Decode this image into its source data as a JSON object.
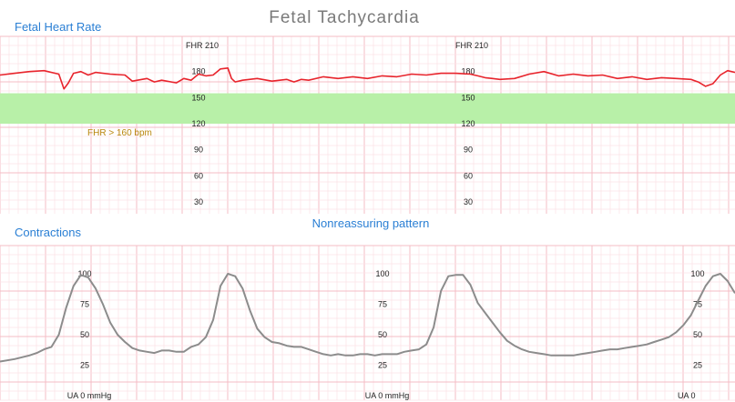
{
  "title": "Fetal Tachycardia",
  "subtitle": "Nonreassuring pattern",
  "colors": {
    "fhr_line": "#e8242c",
    "ua_line": "#8c8c8c",
    "band": "#b8f0a8",
    "grid_minor": "#fbe2e6",
    "grid_major": "#f4bcc6",
    "section_text": "#2a7fd4",
    "band_text": "#b8860b"
  },
  "chart_data": [
    {
      "type": "line",
      "name": "Fetal Heart Rate",
      "section_label": "Fetal Heart Rate",
      "top_label": "FHR 210",
      "ylim": [
        30,
        210
      ],
      "xlim": [
        0,
        100
      ],
      "grid": true,
      "tick_labels": [
        "180",
        "150",
        "120",
        "90",
        "60",
        "30"
      ],
      "tick_values": [
        180,
        150,
        120,
        90,
        60,
        30
      ],
      "band": {
        "from": 120,
        "to": 155,
        "label": "FHR > 160 bpm"
      },
      "series": [
        {
          "x": [
            0,
            2,
            4,
            6,
            8,
            8.7,
            9.3,
            10,
            11,
            12,
            13,
            15,
            17,
            18,
            20,
            21,
            22,
            24,
            25,
            26,
            27,
            28,
            29,
            30,
            31,
            31.5,
            32,
            33,
            35,
            37,
            39,
            40,
            41,
            42,
            44,
            46,
            48,
            50,
            52,
            54,
            56,
            58,
            60,
            62,
            64,
            65,
            66,
            67,
            68,
            70,
            72,
            74,
            76,
            78,
            80,
            82,
            84,
            86,
            88,
            90,
            92,
            94,
            95,
            96,
            97,
            98,
            99,
            100
          ],
          "y": [
            176,
            178,
            180,
            181,
            177,
            160,
            167,
            178,
            180,
            176,
            179,
            177,
            176,
            169,
            172,
            168,
            170,
            167,
            172,
            170,
            177,
            175,
            176,
            183,
            184,
            172,
            168,
            170,
            172,
            169,
            171,
            168,
            171,
            170,
            174,
            172,
            174,
            172,
            175,
            174,
            177,
            176,
            178,
            178,
            177,
            175,
            173,
            172,
            171,
            172,
            177,
            180,
            175,
            177,
            175,
            176,
            172,
            174,
            171,
            173,
            172,
            171,
            168,
            163,
            166,
            176,
            181,
            179
          ]
        }
      ]
    },
    {
      "type": "line",
      "name": "Contractions",
      "section_label": "Contractions",
      "ylim": [
        0,
        100
      ],
      "xlim": [
        0,
        100
      ],
      "grid": true,
      "tick_labels": [
        "100",
        "75",
        "50",
        "25"
      ],
      "tick_values": [
        100,
        75,
        50,
        25
      ],
      "bottom_labels": [
        "UA 0 mmHg",
        "UA 0 mmHg",
        "UA 0"
      ],
      "series": [
        {
          "x": [
            0,
            2,
            4,
            5,
            6,
            7,
            8,
            9,
            10,
            11,
            12,
            13,
            14,
            15,
            16,
            17,
            18,
            19,
            20,
            21,
            22,
            23,
            24,
            25,
            26,
            27,
            28,
            29,
            30,
            31,
            32,
            33,
            34,
            35,
            36,
            37,
            38,
            39,
            40,
            41,
            42,
            43,
            44,
            45,
            46,
            47,
            48,
            49,
            50,
            51,
            52,
            53,
            54,
            55,
            56,
            57,
            58,
            59,
            60,
            61,
            62,
            63,
            64,
            65,
            66,
            67,
            68,
            69,
            70,
            71,
            72,
            73,
            74,
            75,
            76,
            77,
            78,
            79,
            80,
            81,
            82,
            83,
            84,
            85,
            86,
            87,
            88,
            89,
            90,
            91,
            92,
            93,
            94,
            95,
            96,
            97,
            98,
            99,
            100
          ],
          "y": [
            28,
            30,
            33,
            35,
            38,
            40,
            50,
            72,
            90,
            99,
            97,
            88,
            75,
            60,
            50,
            44,
            39,
            37,
            36,
            35,
            37,
            37,
            36,
            36,
            40,
            42,
            48,
            62,
            90,
            100,
            98,
            88,
            70,
            55,
            48,
            44,
            43,
            41,
            40,
            40,
            38,
            36,
            34,
            33,
            34,
            33,
            33,
            34,
            34,
            33,
            34,
            34,
            34,
            36,
            37,
            38,
            42,
            56,
            86,
            98,
            99,
            99,
            91,
            76,
            68,
            60,
            52,
            45,
            41,
            38,
            36,
            35,
            34,
            33,
            33,
            33,
            33,
            34,
            35,
            36,
            37,
            38,
            38,
            39,
            40,
            41,
            42,
            44,
            46,
            48,
            52,
            58,
            66,
            78,
            90,
            98,
            100,
            94,
            84
          ]
        }
      ]
    }
  ]
}
